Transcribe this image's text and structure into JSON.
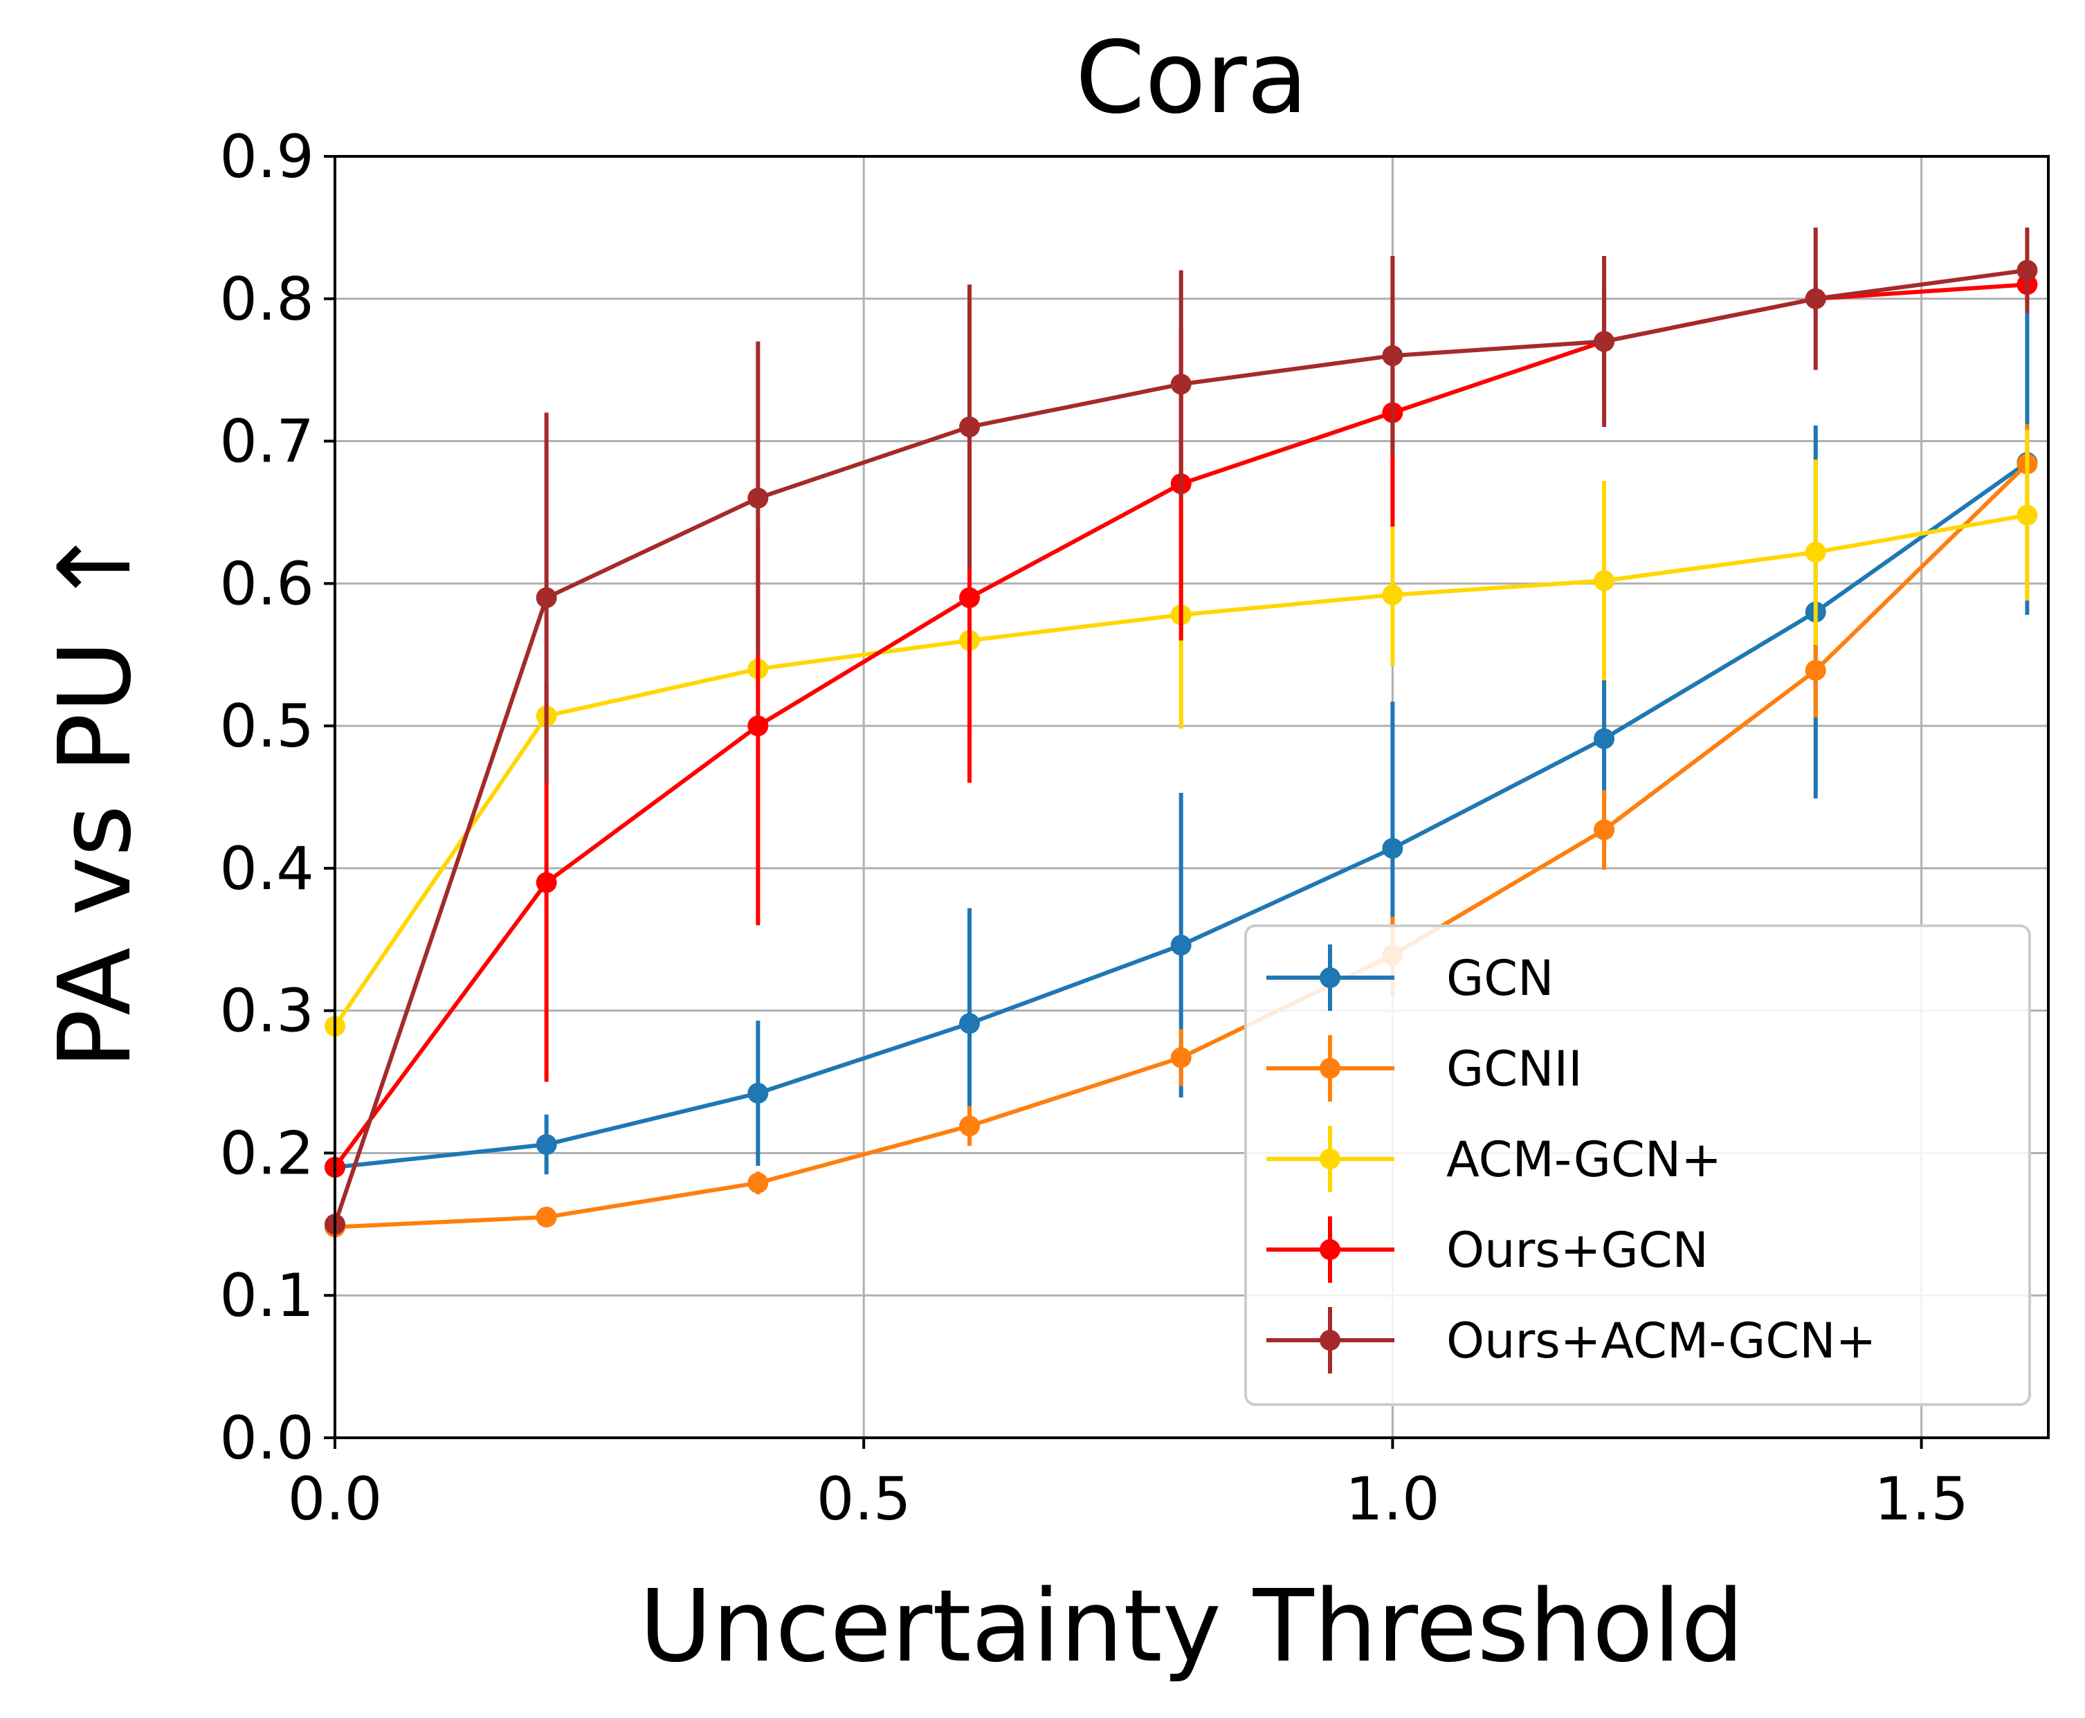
{
  "chart_data": {
    "type": "line",
    "title": "Cora",
    "xlabel": "Uncertainty Threshold",
    "ylabel": "PA vs PU ↑",
    "xlim": [
      0.0,
      1.62
    ],
    "ylim": [
      0.0,
      0.9
    ],
    "xticks": [
      0.0,
      0.5,
      1.0,
      1.5
    ],
    "xtick_labels": [
      "0.0",
      "0.5",
      "1.0",
      "1.5"
    ],
    "yticks": [
      0.0,
      0.1,
      0.2,
      0.3,
      0.4,
      0.5,
      0.6,
      0.7,
      0.8,
      0.9
    ],
    "ytick_labels": [
      "0.0",
      "0.1",
      "0.2",
      "0.3",
      "0.4",
      "0.5",
      "0.6",
      "0.7",
      "0.8",
      "0.9"
    ],
    "grid": true,
    "legend_position": "lower-right",
    "x": [
      0.0,
      0.2,
      0.4,
      0.6,
      0.8,
      1.0,
      1.2,
      1.4,
      1.6
    ],
    "series": [
      {
        "name": "GCN",
        "color": "#1f77b4",
        "values": [
          0.19,
          0.206,
          0.242,
          0.291,
          0.346,
          0.414,
          0.491,
          0.58,
          0.685
        ],
        "errors": [
          0.005,
          0.021,
          0.051,
          0.081,
          0.107,
          0.103,
          0.042,
          0.131,
          0.107
        ]
      },
      {
        "name": "GCNII",
        "color": "#ff7f0e",
        "values": [
          0.148,
          0.155,
          0.179,
          0.219,
          0.267,
          0.339,
          0.427,
          0.539,
          0.684
        ],
        "errors": [
          0.005,
          0.005,
          0.008,
          0.014,
          0.02,
          0.027,
          0.028,
          0.033,
          0.028
        ]
      },
      {
        "name": "ACM-GCN+",
        "color": "#ffd700",
        "values": [
          0.289,
          0.507,
          0.54,
          0.56,
          0.578,
          0.592,
          0.602,
          0.622,
          0.648
        ],
        "errors": [
          0.005,
          0.005,
          0.005,
          0.005,
          0.08,
          0.05,
          0.07,
          0.065,
          0.06
        ]
      },
      {
        "name": "Ours+GCN",
        "color": "#ff0000",
        "values": [
          0.19,
          0.39,
          0.5,
          0.59,
          0.67,
          0.72,
          0.77,
          0.8,
          0.81
        ],
        "errors": [
          0.005,
          0.14,
          0.14,
          0.13,
          0.11,
          0.08,
          0.04,
          0.01,
          0.015
        ]
      },
      {
        "name": "Ours+ACM-GCN+",
        "color": "#a52a2a",
        "values": [
          0.15,
          0.59,
          0.66,
          0.71,
          0.74,
          0.76,
          0.77,
          0.8,
          0.82
        ],
        "errors": [
          0.005,
          0.13,
          0.11,
          0.1,
          0.08,
          0.07,
          0.06,
          0.05,
          0.03
        ]
      }
    ]
  }
}
